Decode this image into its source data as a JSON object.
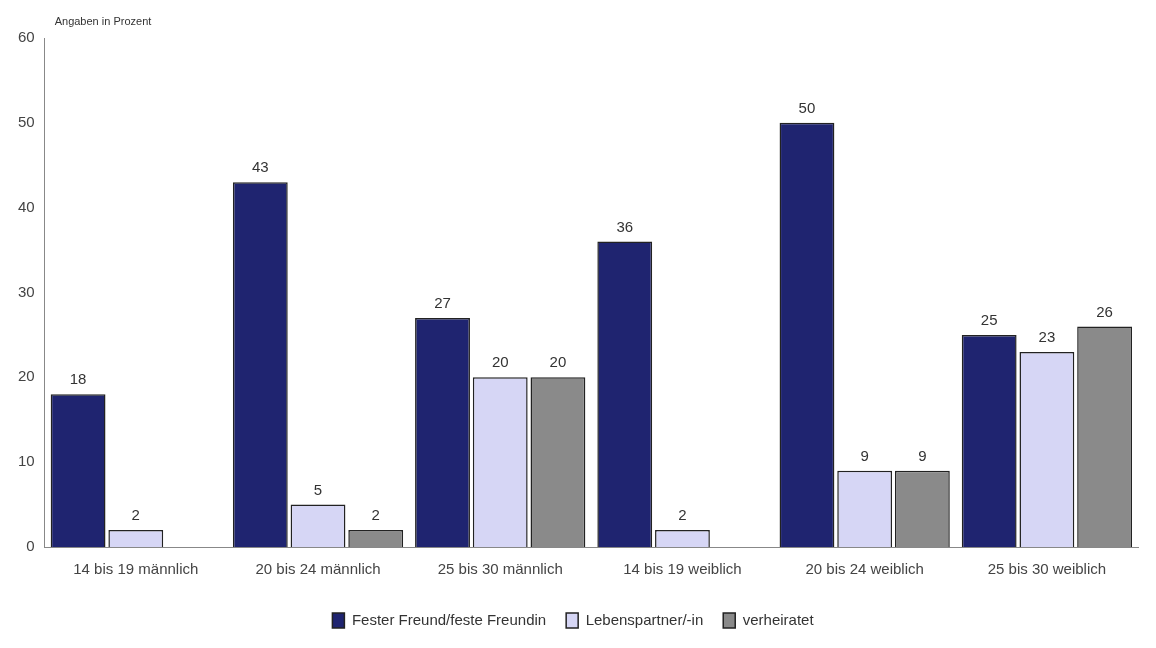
{
  "chart_data": {
    "type": "bar",
    "ylabel": "Angaben in Prozent",
    "categories": [
      "14 bis 19 männlich",
      "20 bis 24 männlich",
      "25 bis 30 männlich",
      "14 bis 19 weiblich",
      "20 bis 24 weiblich",
      "25 bis 30 weiblich"
    ],
    "series": [
      {
        "name": "Fester Freund/feste Freundin",
        "color": "#1f2470",
        "values": [
          18,
          43,
          27,
          36,
          50,
          25
        ]
      },
      {
        "name": "Lebenspartner/-in",
        "color": "#d6d6f5",
        "values": [
          2,
          5,
          20,
          2,
          9,
          23
        ]
      },
      {
        "name": "verheiratet",
        "color": "#8a8a8a",
        "values": [
          null,
          2,
          20,
          null,
          9,
          26
        ]
      }
    ],
    "ylim": [
      0,
      60
    ],
    "yticks": [
      0,
      10,
      20,
      30,
      40,
      50,
      60
    ],
    "data_labels": true,
    "legend": "bottom"
  }
}
